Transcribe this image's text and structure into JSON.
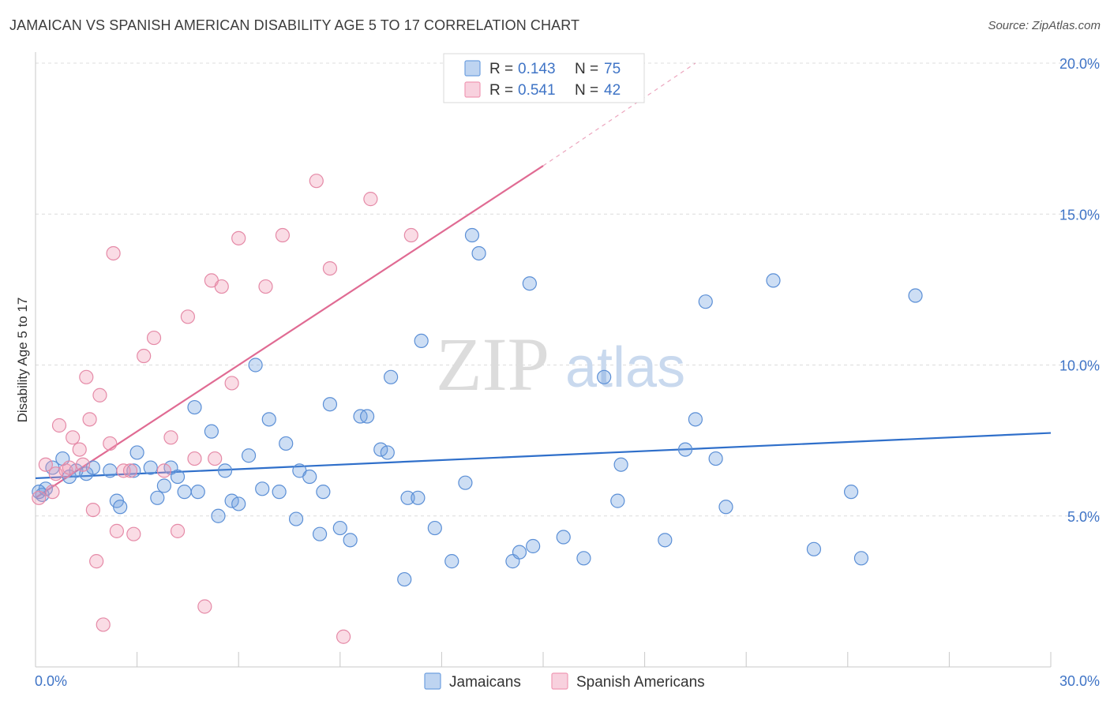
{
  "header": {
    "title": "JAMAICAN VS SPANISH AMERICAN DISABILITY AGE 5 TO 17 CORRELATION CHART",
    "source": "Source: ZipAtlas.com"
  },
  "watermark": {
    "zip": "ZIP",
    "atlas": "atlas"
  },
  "legend": {
    "r_label": "R =",
    "n_label": "N =",
    "entries": [
      {
        "name": "Jamaicans",
        "r": "0.143",
        "n": "75",
        "color": "#6fa0e0"
      },
      {
        "name": "Spanish Americans",
        "r": "0.541",
        "n": "42",
        "color": "#f09ab5"
      }
    ]
  },
  "chart_data": {
    "type": "scatter",
    "title": "JAMAICAN VS SPANISH AMERICAN DISABILITY AGE 5 TO 17 CORRELATION CHART",
    "xlabel": "",
    "ylabel": "Disability Age 5 to 17",
    "xlim": [
      0,
      30
    ],
    "ylim": [
      0,
      20
    ],
    "x_tick_labels": [
      "0.0%",
      "30.0%"
    ],
    "y_ticks": [
      5,
      10,
      15,
      20
    ],
    "y_tick_labels": [
      "5.0%",
      "10.0%",
      "15.0%",
      "20.0%"
    ],
    "grid": true,
    "legend_position": "top-center",
    "series": [
      {
        "name": "Jamaicans",
        "color": "#6fa0e0",
        "stroke": "#5b8fd6",
        "line_color": "#2f6fca",
        "trend": {
          "x": [
            0,
            30
          ],
          "y": [
            6.25,
            7.75
          ]
        },
        "points": [
          [
            0.2,
            5.7
          ],
          [
            0.3,
            5.9
          ],
          [
            0.5,
            6.6
          ],
          [
            0.8,
            6.9
          ],
          [
            1.0,
            6.3
          ],
          [
            1.2,
            6.5
          ],
          [
            1.5,
            6.4
          ],
          [
            1.7,
            6.6
          ],
          [
            2.2,
            6.5
          ],
          [
            2.4,
            5.5
          ],
          [
            2.5,
            5.3
          ],
          [
            2.9,
            6.5
          ],
          [
            3.0,
            7.1
          ],
          [
            3.4,
            6.6
          ],
          [
            3.6,
            5.6
          ],
          [
            3.8,
            6.0
          ],
          [
            4.0,
            6.6
          ],
          [
            4.2,
            6.3
          ],
          [
            4.4,
            5.8
          ],
          [
            4.7,
            8.6
          ],
          [
            4.8,
            5.8
          ],
          [
            5.2,
            7.8
          ],
          [
            5.4,
            5.0
          ],
          [
            5.6,
            6.5
          ],
          [
            5.8,
            5.5
          ],
          [
            6.0,
            5.4
          ],
          [
            6.3,
            7.0
          ],
          [
            6.5,
            10.0
          ],
          [
            6.7,
            5.9
          ],
          [
            6.9,
            8.2
          ],
          [
            7.2,
            5.8
          ],
          [
            7.4,
            7.4
          ],
          [
            7.7,
            4.9
          ],
          [
            7.8,
            6.5
          ],
          [
            8.1,
            6.3
          ],
          [
            8.4,
            4.4
          ],
          [
            8.5,
            5.8
          ],
          [
            8.7,
            8.7
          ],
          [
            9.0,
            4.6
          ],
          [
            9.3,
            4.2
          ],
          [
            9.6,
            8.3
          ],
          [
            9.8,
            8.3
          ],
          [
            10.2,
            7.2
          ],
          [
            10.4,
            7.1
          ],
          [
            10.5,
            9.6
          ],
          [
            10.9,
            2.9
          ],
          [
            11.0,
            5.6
          ],
          [
            11.3,
            5.6
          ],
          [
            11.4,
            10.8
          ],
          [
            11.8,
            4.6
          ],
          [
            12.3,
            3.5
          ],
          [
            12.7,
            6.1
          ],
          [
            12.9,
            14.3
          ],
          [
            13.1,
            13.7
          ],
          [
            14.1,
            3.5
          ],
          [
            14.3,
            3.8
          ],
          [
            14.6,
            12.7
          ],
          [
            14.7,
            4.0
          ],
          [
            15.6,
            4.3
          ],
          [
            16.2,
            3.6
          ],
          [
            16.8,
            9.6
          ],
          [
            17.2,
            5.5
          ],
          [
            17.3,
            6.7
          ],
          [
            18.6,
            4.2
          ],
          [
            19.2,
            7.2
          ],
          [
            19.5,
            8.2
          ],
          [
            19.8,
            12.1
          ],
          [
            20.1,
            6.9
          ],
          [
            20.4,
            5.3
          ],
          [
            21.8,
            12.8
          ],
          [
            23.0,
            3.9
          ],
          [
            24.1,
            5.8
          ],
          [
            24.4,
            3.6
          ],
          [
            26.0,
            12.3
          ],
          [
            0.1,
            5.8
          ]
        ]
      },
      {
        "name": "Spanish Americans",
        "color": "#f09ab5",
        "stroke": "#e58aa7",
        "line_color": "#e06b93",
        "trend": {
          "x": [
            0,
            15
          ],
          "y": [
            5.6,
            16.6
          ]
        },
        "trend_extension": {
          "x": [
            15,
            19.5
          ],
          "y": [
            16.6,
            20.0
          ]
        },
        "points": [
          [
            0.1,
            5.6
          ],
          [
            0.3,
            6.7
          ],
          [
            0.5,
            5.8
          ],
          [
            0.7,
            8.0
          ],
          [
            0.9,
            6.5
          ],
          [
            1.1,
            7.6
          ],
          [
            1.3,
            7.2
          ],
          [
            1.4,
            6.7
          ],
          [
            1.5,
            9.6
          ],
          [
            1.6,
            8.2
          ],
          [
            1.7,
            5.2
          ],
          [
            1.8,
            3.5
          ],
          [
            1.9,
            9.0
          ],
          [
            2.0,
            1.4
          ],
          [
            2.2,
            7.4
          ],
          [
            2.3,
            13.7
          ],
          [
            2.4,
            4.5
          ],
          [
            2.6,
            6.5
          ],
          [
            2.8,
            6.5
          ],
          [
            2.9,
            4.4
          ],
          [
            3.2,
            10.3
          ],
          [
            3.5,
            10.9
          ],
          [
            3.8,
            6.5
          ],
          [
            4.0,
            7.6
          ],
          [
            4.2,
            4.5
          ],
          [
            4.5,
            11.6
          ],
          [
            4.7,
            6.9
          ],
          [
            5.0,
            2.0
          ],
          [
            5.2,
            12.8
          ],
          [
            5.3,
            6.9
          ],
          [
            5.5,
            12.6
          ],
          [
            5.8,
            9.4
          ],
          [
            6.0,
            14.2
          ],
          [
            6.8,
            12.6
          ],
          [
            7.3,
            14.3
          ],
          [
            8.3,
            16.1
          ],
          [
            8.7,
            13.2
          ],
          [
            9.1,
            1.0
          ],
          [
            9.9,
            15.5
          ],
          [
            11.1,
            14.3
          ],
          [
            0.6,
            6.4
          ],
          [
            1.0,
            6.6
          ]
        ]
      }
    ]
  }
}
